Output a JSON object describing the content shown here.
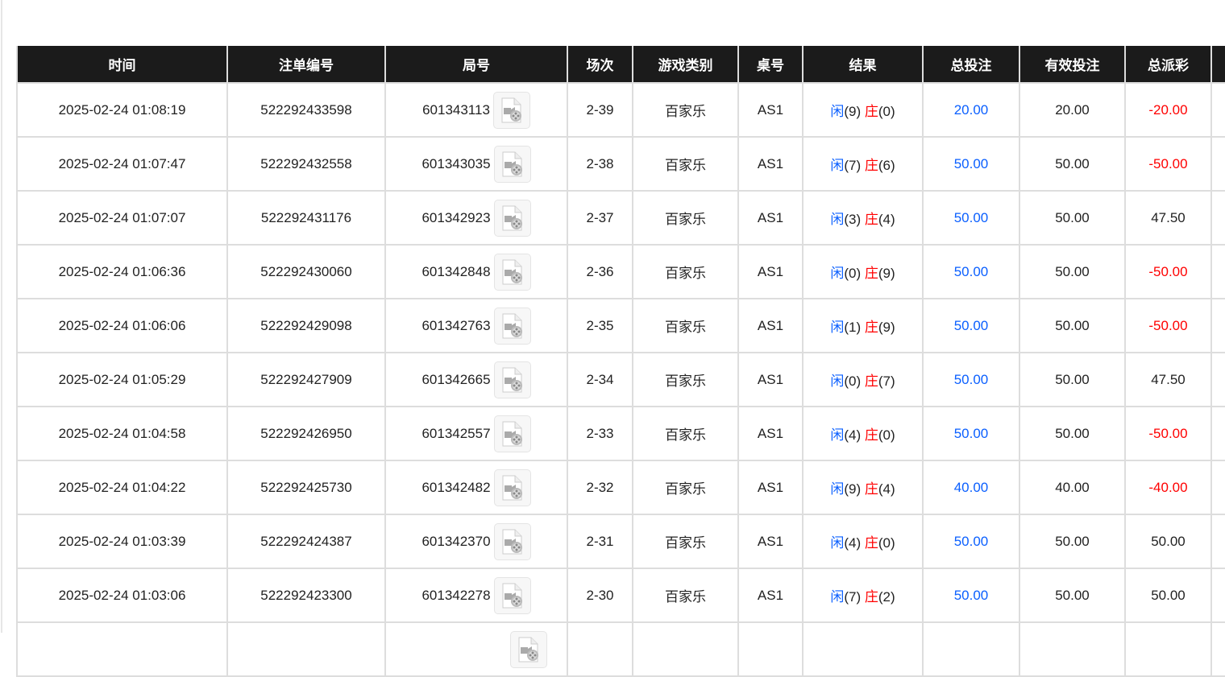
{
  "colors": {
    "header_bg": "#1b1b1b",
    "blue": "#0a5fff",
    "red": "#ff0000"
  },
  "columns": [
    "时间",
    "注单编号",
    "局号",
    "场次",
    "游戏类别",
    "桌号",
    "结果",
    "总投注",
    "有效投注",
    "总派彩",
    ""
  ],
  "rows": [
    {
      "time": "2025-02-24 01:08:19",
      "bet_no": "522292433598",
      "game_no": "601343113",
      "round": "2-39",
      "game": "百家乐",
      "table": "AS1",
      "player": "闲",
      "player_pts": "(9)",
      "banker": "庄",
      "banker_pts": "(0)",
      "total": "20.00",
      "valid": "20.00",
      "payout": "-20.00",
      "payout_neg": true
    },
    {
      "time": "2025-02-24 01:07:47",
      "bet_no": "522292432558",
      "game_no": "601343035",
      "round": "2-38",
      "game": "百家乐",
      "table": "AS1",
      "player": "闲",
      "player_pts": "(7)",
      "banker": "庄",
      "banker_pts": "(6)",
      "total": "50.00",
      "valid": "50.00",
      "payout": "-50.00",
      "payout_neg": true
    },
    {
      "time": "2025-02-24 01:07:07",
      "bet_no": "522292431176",
      "game_no": "601342923",
      "round": "2-37",
      "game": "百家乐",
      "table": "AS1",
      "player": "闲",
      "player_pts": "(3)",
      "banker": "庄",
      "banker_pts": "(4)",
      "total": "50.00",
      "valid": "50.00",
      "payout": "47.50",
      "payout_neg": false
    },
    {
      "time": "2025-02-24 01:06:36",
      "bet_no": "522292430060",
      "game_no": "601342848",
      "round": "2-36",
      "game": "百家乐",
      "table": "AS1",
      "player": "闲",
      "player_pts": "(0)",
      "banker": "庄",
      "banker_pts": "(9)",
      "total": "50.00",
      "valid": "50.00",
      "payout": "-50.00",
      "payout_neg": true
    },
    {
      "time": "2025-02-24 01:06:06",
      "bet_no": "522292429098",
      "game_no": "601342763",
      "round": "2-35",
      "game": "百家乐",
      "table": "AS1",
      "player": "闲",
      "player_pts": "(1)",
      "banker": "庄",
      "banker_pts": "(9)",
      "total": "50.00",
      "valid": "50.00",
      "payout": "-50.00",
      "payout_neg": true
    },
    {
      "time": "2025-02-24 01:05:29",
      "bet_no": "522292427909",
      "game_no": "601342665",
      "round": "2-34",
      "game": "百家乐",
      "table": "AS1",
      "player": "闲",
      "player_pts": "(0)",
      "banker": "庄",
      "banker_pts": "(7)",
      "total": "50.00",
      "valid": "50.00",
      "payout": "47.50",
      "payout_neg": false
    },
    {
      "time": "2025-02-24 01:04:58",
      "bet_no": "522292426950",
      "game_no": "601342557",
      "round": "2-33",
      "game": "百家乐",
      "table": "AS1",
      "player": "闲",
      "player_pts": "(4)",
      "banker": "庄",
      "banker_pts": "(0)",
      "total": "50.00",
      "valid": "50.00",
      "payout": "-50.00",
      "payout_neg": true
    },
    {
      "time": "2025-02-24 01:04:22",
      "bet_no": "522292425730",
      "game_no": "601342482",
      "round": "2-32",
      "game": "百家乐",
      "table": "AS1",
      "player": "闲",
      "player_pts": "(9)",
      "banker": "庄",
      "banker_pts": "(4)",
      "total": "40.00",
      "valid": "40.00",
      "payout": "-40.00",
      "payout_neg": true
    },
    {
      "time": "2025-02-24 01:03:39",
      "bet_no": "522292424387",
      "game_no": "601342370",
      "round": "2-31",
      "game": "百家乐",
      "table": "AS1",
      "player": "闲",
      "player_pts": "(4)",
      "banker": "庄",
      "banker_pts": "(0)",
      "total": "50.00",
      "valid": "50.00",
      "payout": "50.00",
      "payout_neg": false
    },
    {
      "time": "2025-02-24 01:03:06",
      "bet_no": "522292423300",
      "game_no": "601342278",
      "round": "2-30",
      "game": "百家乐",
      "table": "AS1",
      "player": "闲",
      "player_pts": "(7)",
      "banker": "庄",
      "banker_pts": "(2)",
      "total": "50.00",
      "valid": "50.00",
      "payout": "50.00",
      "payout_neg": false
    }
  ]
}
